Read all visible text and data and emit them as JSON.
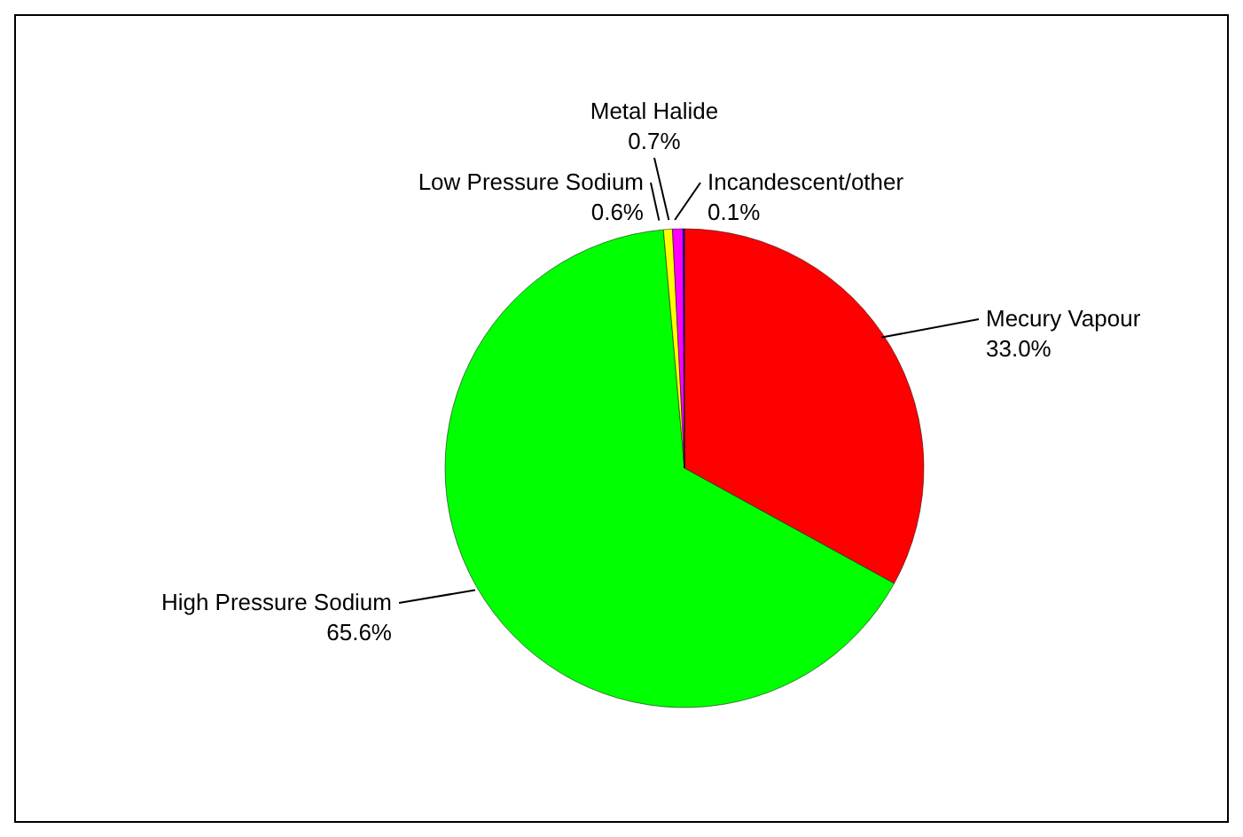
{
  "chart_data": {
    "type": "pie",
    "categories": [
      "Mecury Vapour",
      "High Pressure Sodium",
      "Low Pressure Sodium",
      "Metal Halide",
      "Incandescent/other"
    ],
    "values": [
      33.0,
      65.6,
      0.6,
      0.7,
      0.1
    ],
    "value_labels": [
      "33.0%",
      "65.6%",
      "0.6%",
      "0.7%",
      "0.1%"
    ],
    "colors": [
      "#ff0000",
      "#00ff00",
      "#ffff00",
      "#ff00ff",
      "#0000ff"
    ],
    "legend": false
  }
}
